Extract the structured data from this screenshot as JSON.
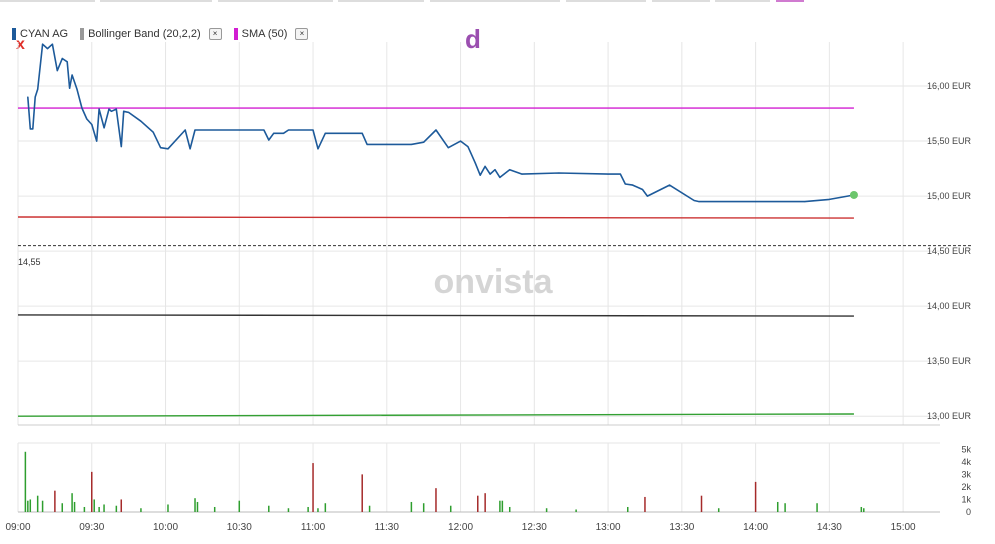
{
  "legend": {
    "items": [
      {
        "label": "CYAN AG",
        "color": "#1d5a9a"
      },
      {
        "label": "Bollinger Band (20,2,2)",
        "color": "#999999"
      },
      {
        "label": "SMA (50)",
        "color": "#d21ed2"
      }
    ],
    "close_glyph": "×"
  },
  "marker_x": "x",
  "marker_d": "d",
  "watermark": "onvista",
  "current_price_label": "14,55",
  "chart_data": {
    "type": "line",
    "x_tick_labels": [
      "09:00",
      "09:30",
      "10:00",
      "10:30",
      "11:00",
      "11:30",
      "12:00",
      "12:30",
      "13:00",
      "13:30",
      "14:00",
      "14:30",
      "15:00"
    ],
    "y_tick_labels": [
      "16,00 EUR",
      "15,50 EUR",
      "15,00 EUR",
      "14,50 EUR",
      "14,00 EUR",
      "13,50 EUR",
      "13,00 EUR"
    ],
    "ylim": [
      12.92,
      16.4
    ],
    "volume_tick_labels": [
      "5k",
      "4k",
      "3k",
      "2k",
      "1k",
      "0"
    ],
    "volume_ylim": [
      0,
      5500
    ],
    "grid": true,
    "series": [
      {
        "name": "CYAN AG",
        "color": "#1d5a9a",
        "points": [
          [
            "09:04",
            15.9
          ],
          [
            "09:05",
            15.61
          ],
          [
            "09:06",
            15.61
          ],
          [
            "09:07",
            15.9
          ],
          [
            "09:08",
            15.97
          ],
          [
            "09:10",
            16.38
          ],
          [
            "09:12",
            16.34
          ],
          [
            "09:14",
            16.38
          ],
          [
            "09:16",
            16.14
          ],
          [
            "09:18",
            16.25
          ],
          [
            "09:20",
            16.22
          ],
          [
            "09:21",
            15.98
          ],
          [
            "09:22",
            16.1
          ],
          [
            "09:24",
            15.97
          ],
          [
            "09:26",
            15.8
          ],
          [
            "09:28",
            15.7
          ],
          [
            "09:30",
            15.65
          ],
          [
            "09:32",
            15.5
          ],
          [
            "09:33",
            15.79
          ],
          [
            "09:35",
            15.62
          ],
          [
            "09:37",
            15.79
          ],
          [
            "09:38",
            15.77
          ],
          [
            "09:40",
            15.79
          ],
          [
            "09:42",
            15.45
          ],
          [
            "09:43",
            15.77
          ],
          [
            "09:45",
            15.76
          ],
          [
            "09:50",
            15.68
          ],
          [
            "09:55",
            15.58
          ],
          [
            "09:58",
            15.44
          ],
          [
            "10:01",
            15.43
          ],
          [
            "10:08",
            15.6
          ],
          [
            "10:10",
            15.43
          ],
          [
            "10:12",
            15.6
          ],
          [
            "10:30",
            15.6
          ],
          [
            "10:40",
            15.6
          ],
          [
            "10:42",
            15.51
          ],
          [
            "10:44",
            15.57
          ],
          [
            "10:48",
            15.57
          ],
          [
            "10:50",
            15.6
          ],
          [
            "11:00",
            15.6
          ],
          [
            "11:02",
            15.43
          ],
          [
            "11:05",
            15.57
          ],
          [
            "11:10",
            15.57
          ],
          [
            "11:20",
            15.57
          ],
          [
            "11:22",
            15.47
          ],
          [
            "11:30",
            15.47
          ],
          [
            "11:40",
            15.47
          ],
          [
            "11:45",
            15.49
          ],
          [
            "11:50",
            15.6
          ],
          [
            "11:55",
            15.44
          ],
          [
            "12:00",
            15.5
          ],
          [
            "12:03",
            15.45
          ],
          [
            "12:04",
            15.4
          ],
          [
            "12:06",
            15.3
          ],
          [
            "12:08",
            15.19
          ],
          [
            "12:10",
            15.27
          ],
          [
            "12:12",
            15.2
          ],
          [
            "12:14",
            15.24
          ],
          [
            "12:16",
            15.17
          ],
          [
            "12:20",
            15.24
          ],
          [
            "12:25",
            15.2
          ],
          [
            "12:40",
            15.21
          ],
          [
            "13:00",
            15.2
          ],
          [
            "13:05",
            15.2
          ],
          [
            "13:07",
            15.11
          ],
          [
            "13:10",
            15.1
          ],
          [
            "13:14",
            15.06
          ],
          [
            "13:16",
            15.0
          ],
          [
            "13:25",
            15.1
          ],
          [
            "13:35",
            14.96
          ],
          [
            "13:37",
            14.95
          ],
          [
            "14:00",
            14.95
          ],
          [
            "14:20",
            14.95
          ],
          [
            "14:30",
            14.97
          ],
          [
            "14:40",
            15.01
          ]
        ]
      },
      {
        "name": "SMA (50)",
        "color": "#d21ed2",
        "start": [
          "09:00",
          15.8
        ],
        "end": [
          "14:40",
          15.8
        ]
      },
      {
        "name": "Bollinger Band (20,2,2)",
        "color": "#cc3333",
        "start": [
          "09:00",
          14.81
        ],
        "end": [
          "14:40",
          14.8
        ]
      },
      {
        "name": "Bollinger Band (20,2,2)",
        "color": "#333333",
        "start": [
          "09:00",
          13.92
        ],
        "end": [
          "14:40",
          13.91
        ]
      },
      {
        "name": "Bollinger Band (20,2,2)",
        "color": "#33a033",
        "start": [
          "09:00",
          13.0
        ],
        "end": [
          "14:40",
          13.02
        ]
      }
    ],
    "current_price": 14.55,
    "volume": [
      [
        "09:03",
        4800,
        "#2e9e2e"
      ],
      [
        "09:04",
        900,
        "#2e9e2e"
      ],
      [
        "09:05",
        1000,
        "#2e9e2e"
      ],
      [
        "09:08",
        1300,
        "#2e9e2e"
      ],
      [
        "09:10",
        900,
        "#2e9e2e"
      ],
      [
        "09:15",
        1700,
        "#a52a2a"
      ],
      [
        "09:18",
        700,
        "#2e9e2e"
      ],
      [
        "09:22",
        1500,
        "#2e9e2e"
      ],
      [
        "09:23",
        800,
        "#2e9e2e"
      ],
      [
        "09:27",
        400,
        "#2e9e2e"
      ],
      [
        "09:30",
        3200,
        "#a52a2a"
      ],
      [
        "09:31",
        1000,
        "#2e9e2e"
      ],
      [
        "09:33",
        400,
        "#2e9e2e"
      ],
      [
        "09:35",
        600,
        "#2e9e2e"
      ],
      [
        "09:40",
        500,
        "#2e9e2e"
      ],
      [
        "09:42",
        1000,
        "#a52a2a"
      ],
      [
        "09:50",
        300,
        "#2e9e2e"
      ],
      [
        "10:01",
        600,
        "#2e9e2e"
      ],
      [
        "10:12",
        1100,
        "#2e9e2e"
      ],
      [
        "10:13",
        800,
        "#2e9e2e"
      ],
      [
        "10:20",
        400,
        "#2e9e2e"
      ],
      [
        "10:30",
        900,
        "#2e9e2e"
      ],
      [
        "10:42",
        500,
        "#2e9e2e"
      ],
      [
        "10:50",
        300,
        "#2e9e2e"
      ],
      [
        "10:58",
        400,
        "#2e9e2e"
      ],
      [
        "11:00",
        3900,
        "#a52a2a"
      ],
      [
        "11:02",
        300,
        "#2e9e2e"
      ],
      [
        "11:05",
        700,
        "#2e9e2e"
      ],
      [
        "11:20",
        3000,
        "#a52a2a"
      ],
      [
        "11:23",
        500,
        "#2e9e2e"
      ],
      [
        "11:40",
        800,
        "#2e9e2e"
      ],
      [
        "11:45",
        700,
        "#2e9e2e"
      ],
      [
        "11:50",
        1900,
        "#a52a2a"
      ],
      [
        "11:56",
        500,
        "#2e9e2e"
      ],
      [
        "12:07",
        1300,
        "#a52a2a"
      ],
      [
        "12:10",
        1500,
        "#a52a2a"
      ],
      [
        "12:16",
        900,
        "#2e9e2e"
      ],
      [
        "12:17",
        900,
        "#2e9e2e"
      ],
      [
        "12:20",
        400,
        "#2e9e2e"
      ],
      [
        "12:35",
        300,
        "#2e9e2e"
      ],
      [
        "12:47",
        200,
        "#2e9e2e"
      ],
      [
        "13:08",
        400,
        "#2e9e2e"
      ],
      [
        "13:15",
        1200,
        "#a52a2a"
      ],
      [
        "13:38",
        1300,
        "#a52a2a"
      ],
      [
        "13:45",
        300,
        "#2e9e2e"
      ],
      [
        "14:00",
        2400,
        "#a52a2a"
      ],
      [
        "14:09",
        800,
        "#2e9e2e"
      ],
      [
        "14:12",
        700,
        "#2e9e2e"
      ],
      [
        "14:25",
        700,
        "#2e9e2e"
      ],
      [
        "14:43",
        400,
        "#2e9e2e"
      ],
      [
        "14:44",
        300,
        "#2e9e2e"
      ]
    ]
  }
}
